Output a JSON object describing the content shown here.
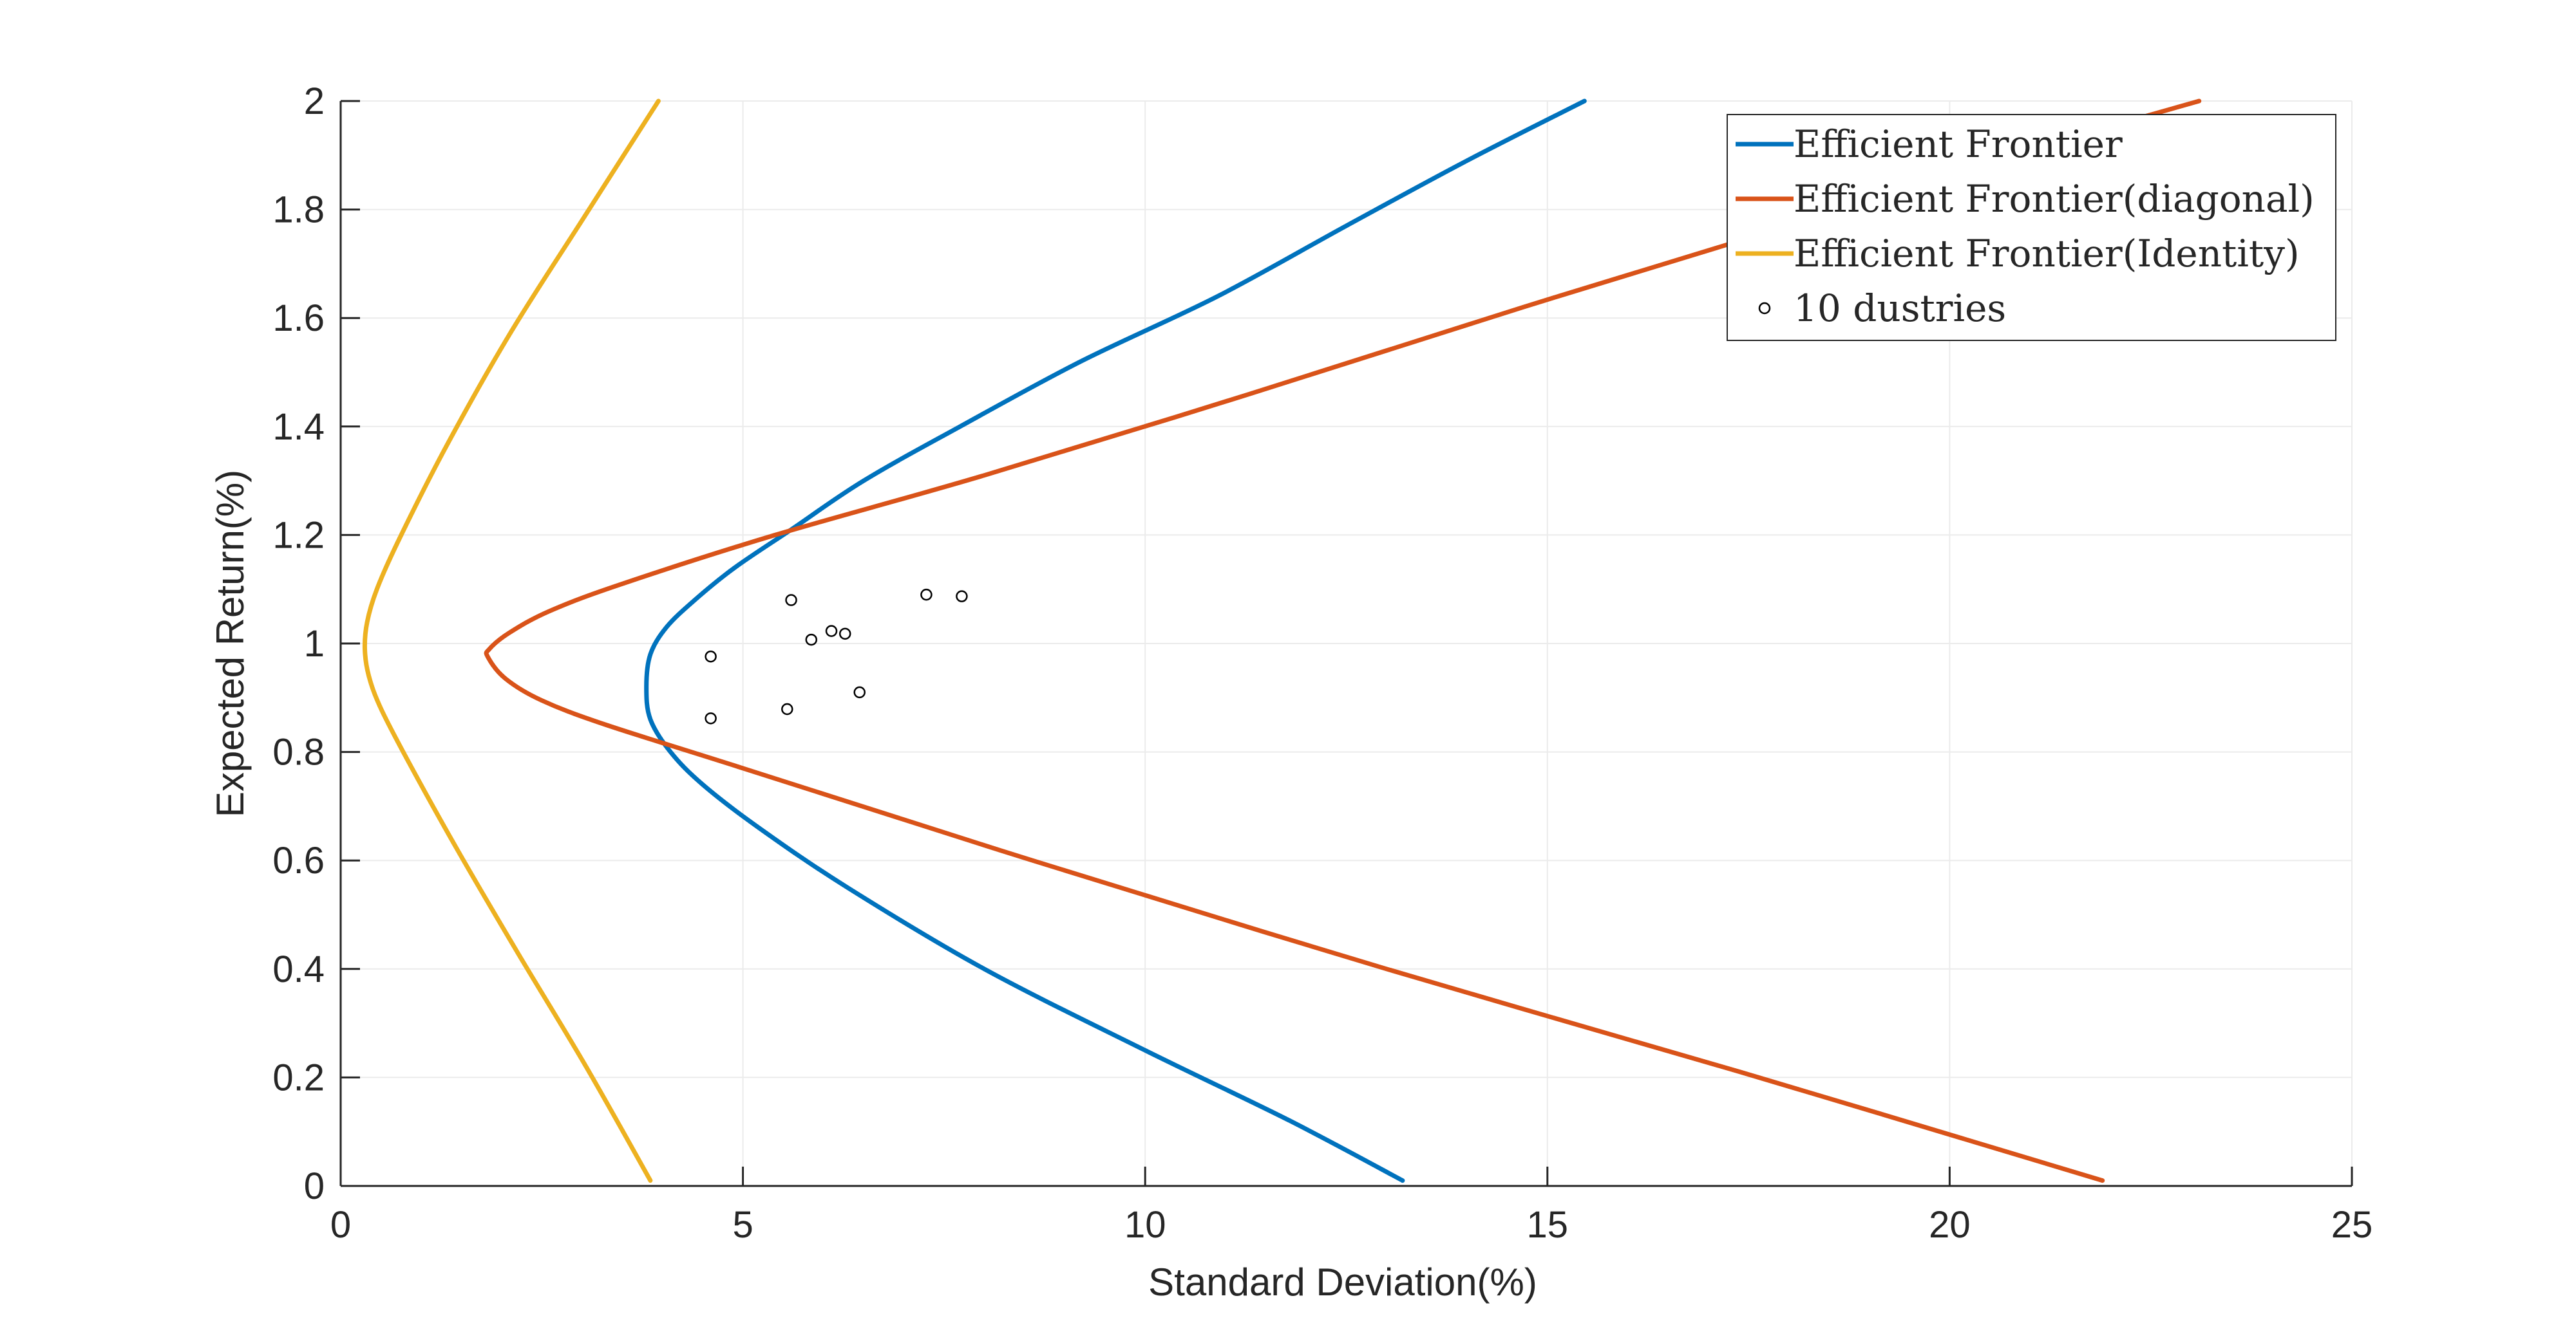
{
  "chart_data": {
    "type": "line",
    "title": "",
    "xlabel": "Standard Deviation(%)",
    "ylabel": "Expected Return(%)",
    "xlim": [
      0,
      25
    ],
    "ylim": [
      0,
      2
    ],
    "xticks": [
      0,
      5,
      10,
      15,
      20,
      25
    ],
    "yticks": [
      0,
      0.2,
      0.4,
      0.6,
      0.8,
      1,
      1.2,
      1.4,
      1.6,
      1.8,
      2
    ],
    "xtick_labels": [
      "0",
      "5",
      "10",
      "15",
      "20",
      "25"
    ],
    "ytick_labels": [
      "0",
      "0.2",
      "0.4",
      "0.6",
      "0.8",
      "1",
      "1.2",
      "1.4",
      "1.6",
      "1.8",
      "2"
    ],
    "grid": true,
    "legend_position": "top-right",
    "colors": {
      "axis": "#262626",
      "grid": "#ebebeb",
      "frontier": "#0072bd",
      "diagonal": "#d95319",
      "identity": "#edb120",
      "marker": "#000000"
    },
    "series": [
      {
        "name": "Efficient Frontier",
        "kind": "line",
        "color": "#0072bd",
        "x": [
          13.2,
          11.8,
          10.0,
          8.0,
          6.3,
          5.2,
          4.5,
          4.1,
          3.85,
          3.8,
          3.85,
          4.05,
          4.4,
          4.9,
          5.6,
          6.5,
          7.7,
          9.2,
          10.9,
          12.5,
          14.0,
          15.46
        ],
        "y": [
          0.01,
          0.12,
          0.25,
          0.4,
          0.55,
          0.66,
          0.74,
          0.8,
          0.86,
          0.92,
          0.98,
          1.03,
          1.08,
          1.14,
          1.21,
          1.3,
          1.4,
          1.52,
          1.64,
          1.77,
          1.89,
          2.0
        ]
      },
      {
        "name": "Efficient Frontier(diagonal)",
        "kind": "line",
        "color": "#d95319",
        "x": [
          21.9,
          17.4,
          13.0,
          8.6,
          5.0,
          3.3,
          2.5,
          2.05,
          1.83,
          1.85,
          2.1,
          2.6,
          3.5,
          5.4,
          8.0,
          11.3,
          14.7,
          18.0,
          21.0,
          23.1
        ],
        "y": [
          0.01,
          0.21,
          0.4,
          0.6,
          0.77,
          0.85,
          0.895,
          0.935,
          0.975,
          0.99,
          1.02,
          1.06,
          1.11,
          1.2,
          1.31,
          1.46,
          1.62,
          1.77,
          1.91,
          2.0
        ]
      },
      {
        "name": "Efficient Frontier(Identity)",
        "kind": "line",
        "color": "#edb120",
        "x": [
          3.85,
          3.05,
          2.2,
          1.45,
          0.85,
          0.5,
          0.35,
          0.3,
          0.33,
          0.45,
          0.72,
          1.3,
          2.1,
          3.0,
          3.95
        ],
        "y": [
          0.01,
          0.22,
          0.43,
          0.62,
          0.78,
          0.88,
          0.94,
          0.99,
          1.04,
          1.1,
          1.19,
          1.36,
          1.57,
          1.78,
          2.0
        ]
      },
      {
        "name": "10 dustries",
        "kind": "scatter",
        "color": "#000000",
        "x": [
          4.6,
          4.6,
          5.55,
          5.6,
          5.85,
          6.1,
          6.27,
          6.45,
          7.28,
          7.72
        ],
        "y": [
          0.976,
          0.862,
          0.879,
          1.08,
          1.007,
          1.023,
          1.018,
          0.91,
          1.09,
          1.087
        ]
      }
    ]
  }
}
